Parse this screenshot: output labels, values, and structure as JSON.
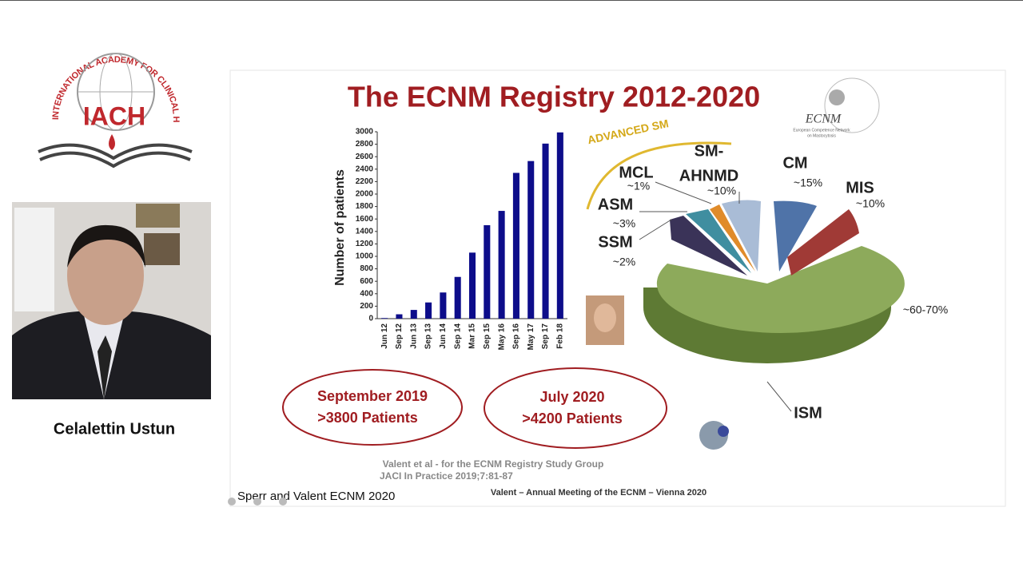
{
  "logo": {
    "arc_text": "INTERNATIONAL ACADEMY FOR CLINICAL HEMATOLOGY",
    "name": "IACH"
  },
  "speaker": {
    "name": "Celalettin Ustun"
  },
  "slide": {
    "title": "The ECNM Registry 2012-2020",
    "ecnm_logo": {
      "name": "ECNM",
      "subtitle_lines": [
        "European Competence Network",
        "on Mastocytosis"
      ]
    },
    "chart_data": {
      "type": "bar",
      "y_label": "Number of patients",
      "categories": [
        "Jun 12",
        "Sep 12",
        "Jun 13",
        "Sep 13",
        "Jun 14",
        "Sep 14",
        "Mar 15",
        "Sep 15",
        "May 16",
        "Sep 16",
        "May 17",
        "Sep 17",
        "Feb 18"
      ],
      "values": [
        10,
        70,
        140,
        260,
        420,
        670,
        1060,
        1500,
        1730,
        2340,
        2530,
        2810,
        2990
      ],
      "color": "#0d0d8a",
      "ylim": [
        0,
        3000
      ],
      "yticks": [
        0,
        200,
        400,
        600,
        800,
        1000,
        1200,
        1400,
        1600,
        1800,
        2000,
        2200,
        2400,
        2600,
        2800,
        3000
      ]
    },
    "pie": {
      "advanced_label": "ADVANCED SM",
      "labels": {
        "cm": {
          "name": "CM",
          "pct": "~15%"
        },
        "mis": {
          "name": "MIS",
          "pct": "~10%"
        },
        "sm_ahnmd": {
          "name_lines": [
            "SM-",
            "AHNMD"
          ],
          "pct": "~10%"
        },
        "mcl": {
          "name": "MCL",
          "pct": "~1%"
        },
        "asm": {
          "name": "ASM",
          "pct": "~3%"
        },
        "ssm": {
          "name": "SSM",
          "pct": "~2%"
        },
        "ism": {
          "name": "ISM",
          "pct": "~60-70%"
        }
      }
    },
    "ovals": [
      {
        "lines": [
          "September 2019",
          ">3800 Patients"
        ]
      },
      {
        "lines": [
          "July 2020",
          ">4200 Patients"
        ]
      }
    ],
    "citation_lines": [
      "Valent et al - for the ECNM Registry Study Group",
      "JACI In Practice 2019;7:81-87"
    ],
    "footer": "Valent – Annual Meeting of the ECNM – Vienna 2020"
  },
  "caption": "Sperr and Valent ECNM 2020"
}
